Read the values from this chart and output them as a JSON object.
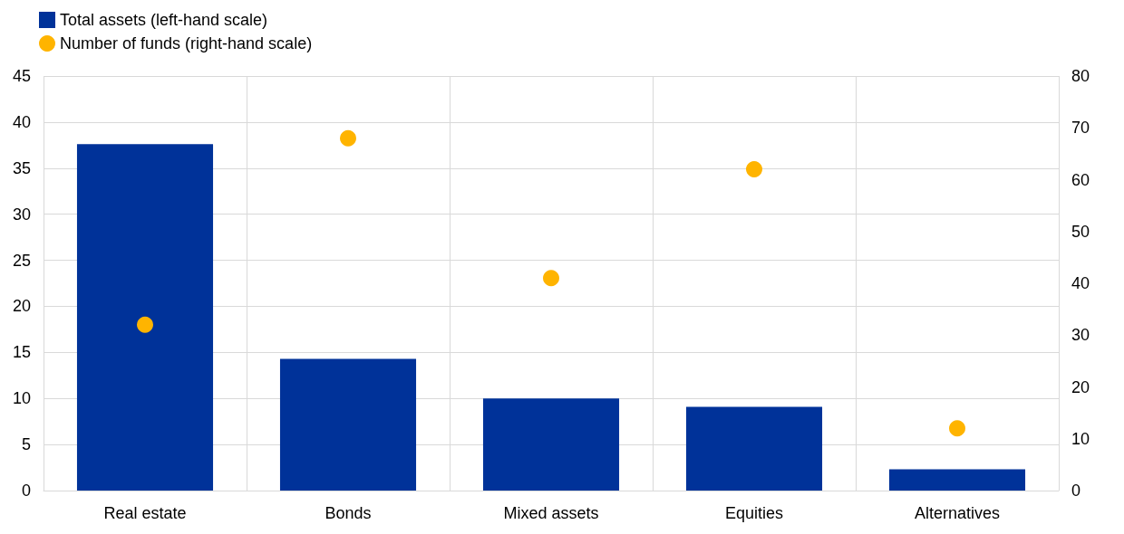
{
  "chart_data": {
    "type": "bar",
    "categories": [
      "Real estate",
      "Bonds",
      "Mixed assets",
      "Equities",
      "Alternatives"
    ],
    "series": [
      {
        "name": "Total assets (left-hand scale)",
        "color": "#003299",
        "values": [
          37.6,
          14.3,
          10.0,
          9.1,
          2.3
        ]
      },
      {
        "name": "Number of funds (right-hand scale)",
        "type": "scatter",
        "axis": "y2",
        "color": "#ffb400",
        "x": [
          "Real estate",
          "Bonds",
          "Mixed assets",
          "Equities",
          "Alternatives"
        ],
        "values": [
          32,
          68,
          41,
          62,
          12
        ]
      }
    ],
    "ylim": [
      0,
      45
    ],
    "yticks": [
      0,
      5,
      10,
      15,
      20,
      25,
      30,
      35,
      40,
      45
    ],
    "y2lim": [
      0,
      80
    ],
    "y2ticks": [
      0,
      10,
      20,
      30,
      40,
      50,
      60,
      70,
      80
    ],
    "grid": true,
    "legend": "top left",
    "marker": "circle"
  }
}
